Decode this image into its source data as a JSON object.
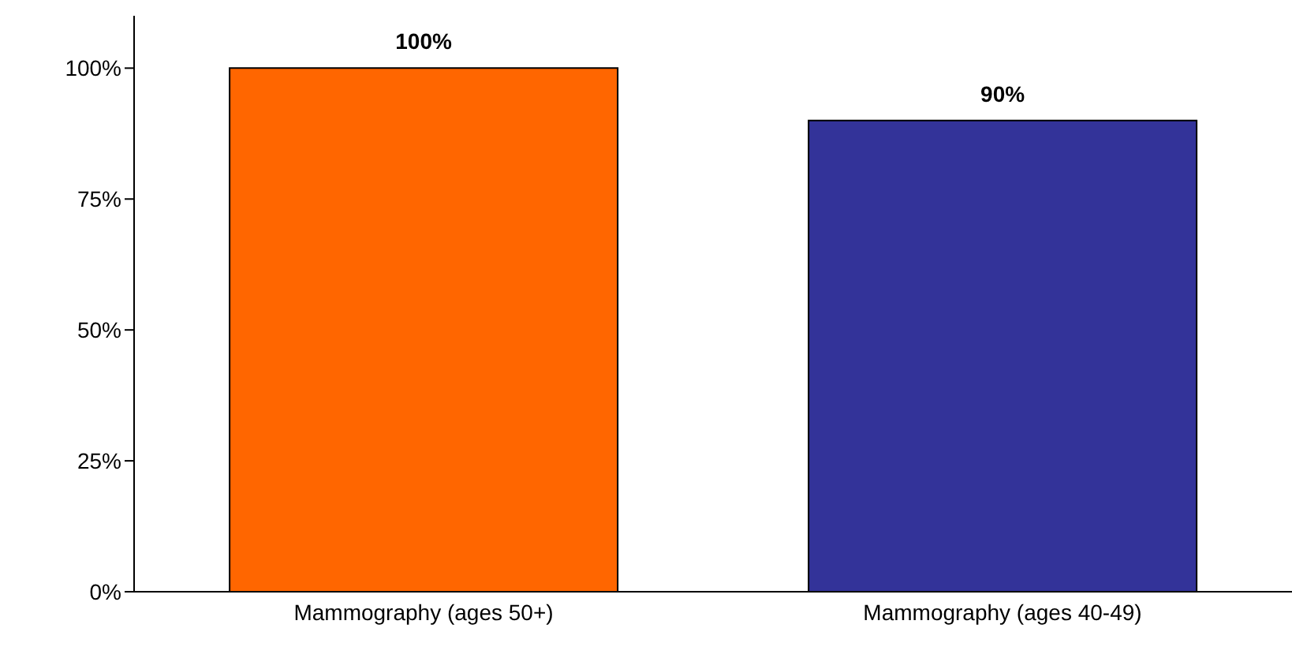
{
  "chart_data": {
    "type": "bar",
    "categories": [
      "Mammography (ages 50+)",
      "Mammography (ages 40-49)"
    ],
    "values": [
      100,
      90
    ],
    "colors": [
      "#ff6600",
      "#333399"
    ],
    "value_labels": [
      "100%",
      "90%"
    ],
    "ylim": [
      0,
      110
    ],
    "yticks": [
      {
        "value": 0,
        "label": "0%"
      },
      {
        "value": 25,
        "label": "25%"
      },
      {
        "value": 50,
        "label": "50%"
      },
      {
        "value": 75,
        "label": "75%"
      },
      {
        "value": 100,
        "label": "100%"
      }
    ],
    "grid": false,
    "legend": false
  }
}
